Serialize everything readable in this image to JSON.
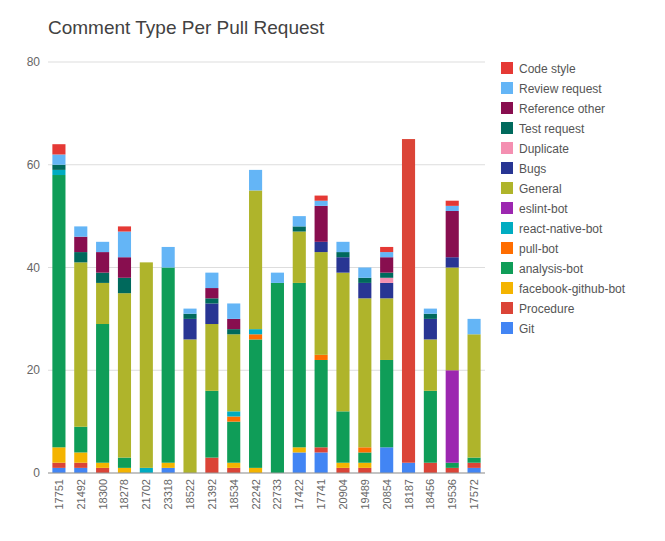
{
  "chart_data": {
    "type": "bar",
    "stacked": true,
    "grid": true,
    "legend": "right",
    "title": "Comment Type Per Pull Request",
    "categories": [
      "17751",
      "21492",
      "18300",
      "18278",
      "21702",
      "23318",
      "18522",
      "21392",
      "18534",
      "22242",
      "22733",
      "17422",
      "17741",
      "20904",
      "19489",
      "20854",
      "18187",
      "18456",
      "19536",
      "17572"
    ],
    "series": [
      {
        "name": "Git",
        "color": "#4285f4",
        "values": [
          1,
          1,
          0,
          0,
          0,
          1,
          0,
          0,
          0,
          0,
          0,
          4,
          4,
          0,
          0,
          5,
          2,
          0,
          0,
          1
        ]
      },
      {
        "name": "Procedure",
        "color": "#db4437",
        "values": [
          1,
          1,
          1,
          0,
          0,
          0,
          0,
          3,
          1,
          0,
          0,
          0,
          1,
          1,
          1,
          0,
          63,
          2,
          1,
          1
        ]
      },
      {
        "name": "facebook-github-bot",
        "color": "#f4b400",
        "values": [
          3,
          2,
          1,
          1,
          0,
          1,
          0,
          0,
          1,
          1,
          0,
          1,
          0,
          1,
          1,
          0,
          0,
          0,
          0,
          0
        ]
      },
      {
        "name": "analysis-bot",
        "color": "#0f9d58",
        "values": [
          53,
          5,
          27,
          2,
          0,
          38,
          0,
          13,
          8,
          25,
          37,
          32,
          17,
          10,
          2,
          17,
          0,
          14,
          1,
          1
        ]
      },
      {
        "name": "pull-bot",
        "color": "#ff6d00",
        "values": [
          0,
          0,
          0,
          0,
          0,
          0,
          0,
          0,
          1,
          1,
          0,
          0,
          1,
          0,
          1,
          0,
          0,
          0,
          0,
          0
        ]
      },
      {
        "name": "react-native-bot",
        "color": "#00acc1",
        "values": [
          1,
          0,
          0,
          0,
          1,
          0,
          0,
          0,
          1,
          1,
          0,
          0,
          0,
          0,
          0,
          0,
          0,
          0,
          0,
          0
        ]
      },
      {
        "name": "eslint-bot",
        "color": "#9c27b0",
        "values": [
          0,
          0,
          0,
          0,
          0,
          0,
          0,
          0,
          0,
          0,
          0,
          0,
          0,
          0,
          0,
          0,
          0,
          0,
          18,
          0
        ]
      },
      {
        "name": "General",
        "color": "#afb42b",
        "values": [
          0,
          32,
          8,
          32,
          40,
          0,
          26,
          13,
          15,
          27,
          0,
          10,
          20,
          27,
          29,
          12,
          0,
          10,
          20,
          24
        ]
      },
      {
        "name": "Bugs",
        "color": "#283593",
        "values": [
          0,
          0,
          0,
          0,
          0,
          0,
          4,
          4,
          0,
          0,
          0,
          0,
          2,
          3,
          3,
          3,
          0,
          4,
          2,
          0
        ]
      },
      {
        "name": "Duplicate",
        "color": "#f48fb1",
        "values": [
          0,
          0,
          0,
          0,
          0,
          0,
          0,
          0,
          0,
          0,
          0,
          0,
          0,
          0,
          0,
          1,
          0,
          0,
          0,
          0
        ]
      },
      {
        "name": "Test request",
        "color": "#00695c",
        "values": [
          1,
          2,
          2,
          3,
          0,
          0,
          1,
          1,
          1,
          0,
          0,
          1,
          0,
          1,
          1,
          1,
          0,
          1,
          0,
          0
        ]
      },
      {
        "name": "Reference other",
        "color": "#880e4f",
        "values": [
          0,
          3,
          4,
          4,
          0,
          0,
          0,
          2,
          2,
          0,
          0,
          0,
          7,
          0,
          0,
          3,
          0,
          0,
          9,
          0
        ]
      },
      {
        "name": "Review request",
        "color": "#64b5f6",
        "values": [
          2,
          2,
          2,
          5,
          0,
          4,
          1,
          3,
          3,
          4,
          2,
          2,
          1,
          2,
          2,
          1,
          0,
          1,
          1,
          3
        ]
      },
      {
        "name": "Code style",
        "color": "#e53935",
        "values": [
          2,
          0,
          0,
          1,
          0,
          0,
          0,
          0,
          0,
          0,
          0,
          0,
          1,
          0,
          0,
          1,
          0,
          0,
          1,
          0
        ]
      }
    ],
    "ylim": [
      0,
      80
    ],
    "yticks": [
      0,
      20,
      40,
      60,
      80
    ]
  }
}
